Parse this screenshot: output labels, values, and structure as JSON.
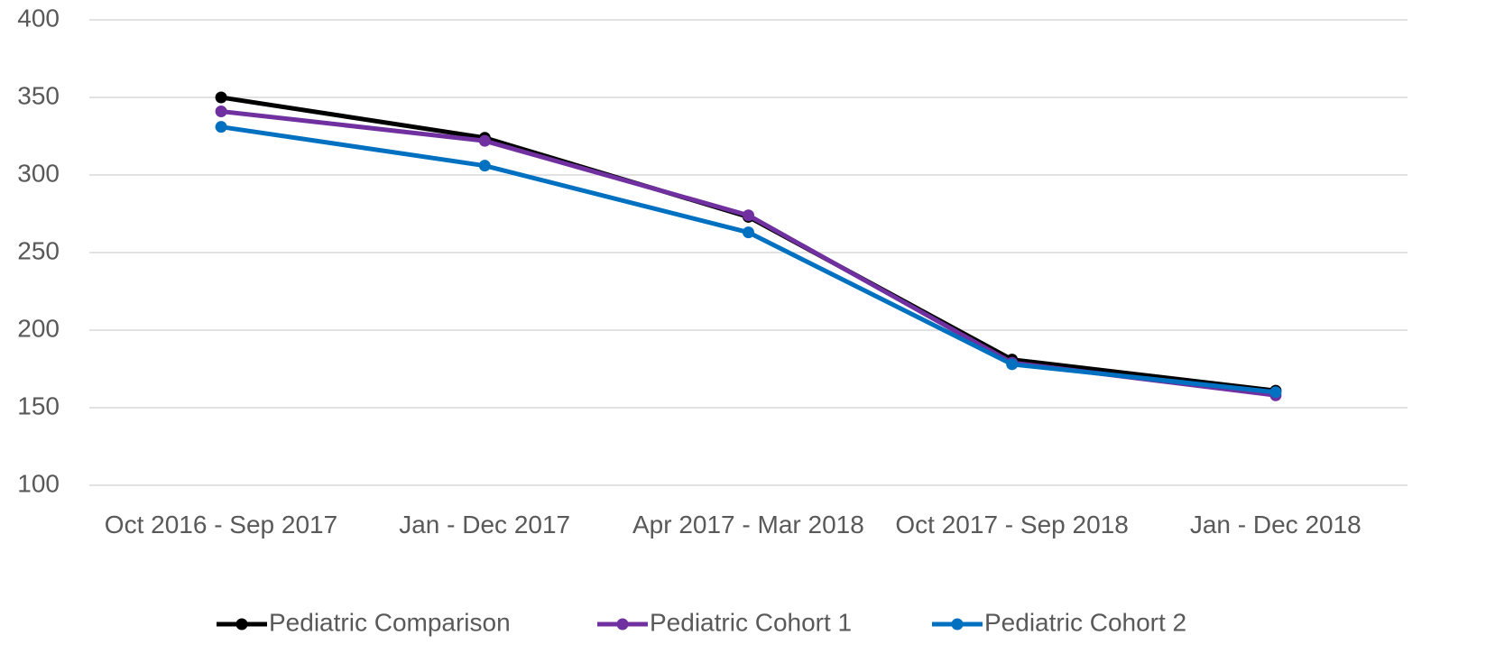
{
  "chart_data": {
    "type": "line",
    "categories": [
      "Oct 2016 - Sep 2017",
      "Jan - Dec 2017",
      "Apr 2017 - Mar 2018",
      "Oct 2017 - Sep 2018",
      "Jan - Dec 2018"
    ],
    "series": [
      {
        "name": "Pediatric Comparison",
        "color": "#000000",
        "values": [
          350,
          324,
          273,
          181,
          161
        ]
      },
      {
        "name": "Pediatric Cohort 1",
        "color": "#7030a0",
        "values": [
          341,
          322,
          274,
          179,
          158
        ]
      },
      {
        "name": "Pediatric Cohort 2",
        "color": "#0070c0",
        "values": [
          331,
          306,
          263,
          178,
          160
        ]
      }
    ],
    "ylim": [
      100,
      400
    ],
    "yticks": [
      100,
      150,
      200,
      250,
      300,
      350,
      400
    ],
    "grid": true,
    "legend": "bottom"
  }
}
